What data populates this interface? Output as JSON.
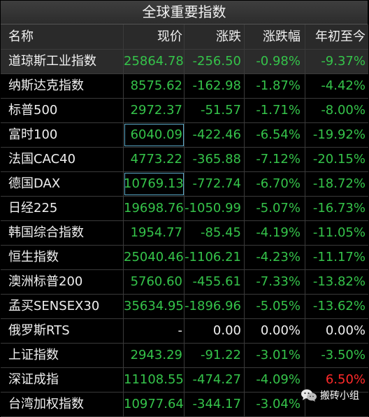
{
  "title": "全球重要指数",
  "headers": {
    "name": "名称",
    "price": "现价",
    "change": "涨跌",
    "pct": "涨跌幅",
    "ytd": "年初至今"
  },
  "rows": [
    {
      "name": "道琼斯工业指数",
      "price": "25864.78",
      "change": "-256.50",
      "pct": "-0.98%",
      "ytd": "-9.37%"
    },
    {
      "name": "纳斯达克指数",
      "price": "8575.62",
      "change": "-162.98",
      "pct": "-1.87%",
      "ytd": "-4.42%"
    },
    {
      "name": "标普500",
      "price": "2972.37",
      "change": "-51.57",
      "pct": "-1.71%",
      "ytd": "-8.00%"
    },
    {
      "name": "富时100",
      "price": "6040.09",
      "change": "-422.46",
      "pct": "-6.54%",
      "ytd": "-19.92%"
    },
    {
      "name": "法国CAC40",
      "price": "4773.22",
      "change": "-365.88",
      "pct": "-7.12%",
      "ytd": "-20.15%"
    },
    {
      "name": "德国DAX",
      "price": "10769.13",
      "change": "-772.74",
      "pct": "-6.70%",
      "ytd": "-18.72%"
    },
    {
      "name": "日经225",
      "price": "19698.76",
      "change": "-1050.99",
      "pct": "-5.07%",
      "ytd": "-16.73%"
    },
    {
      "name": "韩国综合指数",
      "price": "1954.77",
      "change": "-85.45",
      "pct": "-4.19%",
      "ytd": "-11.05%"
    },
    {
      "name": "恒生指数",
      "price": "25040.46",
      "change": "-1106.21",
      "pct": "-4.23%",
      "ytd": "-11.17%"
    },
    {
      "name": "澳洲标普200",
      "price": "5760.60",
      "change": "-455.61",
      "pct": "-7.33%",
      "ytd": "-13.82%"
    },
    {
      "name": "孟买SENSEX30",
      "price": "35634.95",
      "change": "-1896.96",
      "pct": "-5.05%",
      "ytd": "-13.62%"
    },
    {
      "name": "俄罗斯RTS",
      "price": "-",
      "change": "0.00",
      "pct": "0.00%",
      "ytd": "0.00%"
    },
    {
      "name": "上证指数",
      "price": "2943.29",
      "change": "-91.22",
      "pct": "-3.01%",
      "ytd": "-3.50%"
    },
    {
      "name": "深证成指",
      "price": "11108.55",
      "change": "-474.27",
      "pct": "-4.09%",
      "ytd": "6.50%"
    },
    {
      "name": "台湾加权指数",
      "price": "10977.64",
      "change": "-344.17",
      "pct": "-3.04%",
      "ytd": ""
    }
  ],
  "watermark": {
    "text": "搬砖小组",
    "icon": "wechat-icon"
  },
  "colors": {
    "up": "#ff2a2a",
    "down": "#35c34a",
    "flat": "#f0f0f0",
    "selection_border": "#5aa9c8"
  }
}
